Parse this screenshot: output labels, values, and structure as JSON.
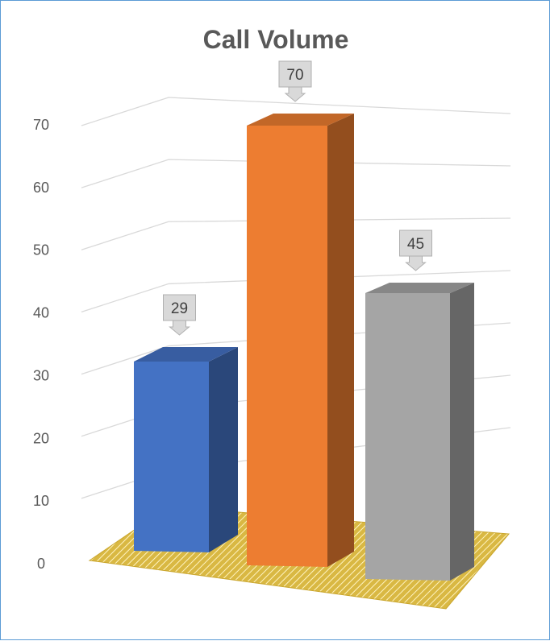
{
  "chart_data": {
    "type": "bar",
    "title": "Call Volume",
    "xlabel": "",
    "ylabel": "",
    "categories": [
      "",
      "",
      ""
    ],
    "values": [
      29,
      70,
      45
    ],
    "colors": [
      "#4472c4",
      "#ed7d31",
      "#a5a5a5"
    ],
    "ylim": [
      0,
      70
    ],
    "yticks": [
      "0",
      "10",
      "20",
      "30",
      "40",
      "50",
      "60",
      "70"
    ],
    "data_labels": [
      "29",
      "70",
      "45"
    ],
    "grid": true,
    "style": "3d-column",
    "floor_color": "#d4b030",
    "legend": "none"
  }
}
